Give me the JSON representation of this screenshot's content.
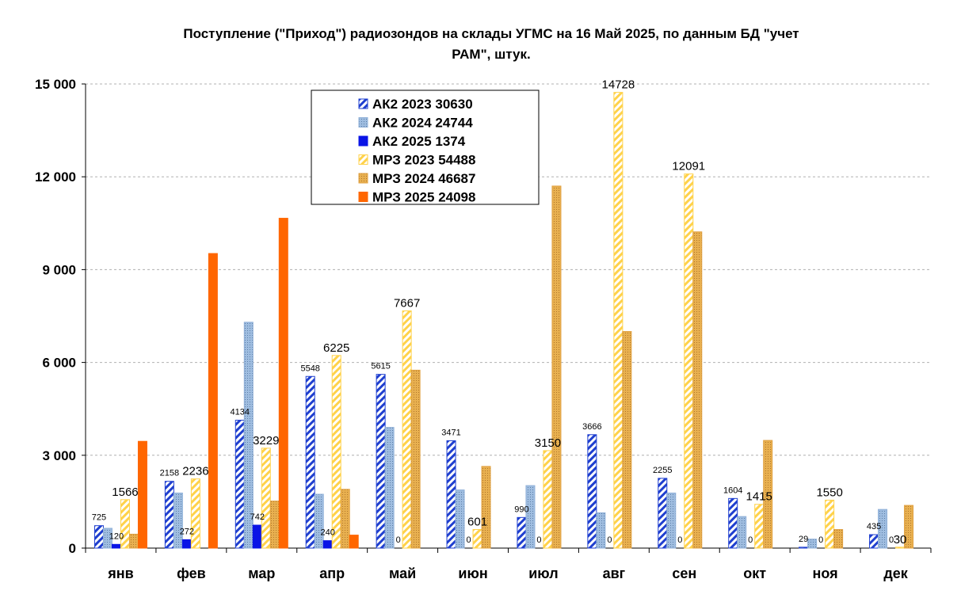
{
  "chart_data": {
    "type": "bar",
    "title_line1": "Поступление  (\"Приход\")  радиозондов на склады УГМС  на 16 Май 2025, по данным БД \"учет",
    "title_line2": "РАМ\", штук.",
    "categories": [
      "янв",
      "фев",
      "мар",
      "апр",
      "май",
      "июн",
      "июл",
      "авг",
      "сен",
      "окт",
      "ноя",
      "дек"
    ],
    "ylim": [
      0,
      15000
    ],
    "yticks": [
      0,
      3000,
      6000,
      9000,
      12000,
      15000
    ],
    "ytick_labels": [
      "0",
      "3 000",
      "6 000",
      "9 000",
      "12 000",
      "15 000"
    ],
    "grid": true,
    "legend_position": "top-center",
    "series": [
      {
        "name": "АК2 2023 30630",
        "values": [
          725,
          2158,
          4134,
          5548,
          5615,
          3471,
          990,
          3666,
          2255,
          1604,
          29,
          435
        ],
        "labels": [
          "725",
          "2158",
          "4134",
          "5548",
          "5615",
          "3471",
          "990",
          "3666",
          "2255",
          "1604",
          "29",
          "435"
        ],
        "label_style": "small",
        "color": "#1f3fcf",
        "fill": "hatch"
      },
      {
        "name": "АК2 2024 24744",
        "values": [
          640,
          1780,
          7300,
          1740,
          3900,
          1880,
          2020,
          1140,
          1780,
          1020,
          290,
          1250
        ],
        "labels": [
          "",
          "",
          "",
          "",
          "",
          "",
          "",
          "",
          "",
          "",
          "",
          ""
        ],
        "label_style": "small",
        "color": "#8fb0d8",
        "fill": "dotted"
      },
      {
        "name": "АК2 2025 1374",
        "values": [
          120,
          272,
          742,
          240,
          0,
          0,
          0,
          0,
          0,
          0,
          0,
          0
        ],
        "labels": [
          "120",
          "272",
          "742",
          "240",
          "0",
          "0",
          "0",
          "0",
          "0",
          "0",
          "0",
          "0"
        ],
        "label_style": "small",
        "color": "#0a14e6",
        "fill": "solid"
      },
      {
        "name": "МРЗ 2023 54488",
        "values": [
          1566,
          2236,
          3229,
          6225,
          7667,
          601,
          3150,
          14728,
          12091,
          1415,
          1550,
          30
        ],
        "labels": [
          "1566",
          "2236",
          "3229",
          "6225",
          "7667",
          "601",
          "3150",
          "14728",
          "12091",
          "1415",
          "1550",
          "30"
        ],
        "label_style": "large",
        "color": "#ffd24a",
        "fill": "hatch"
      },
      {
        "name": "МРЗ 2024 46687",
        "values": [
          450,
          0,
          1520,
          1900,
          5750,
          2640,
          11700,
          7000,
          10220,
          3480,
          600,
          1380
        ],
        "labels": [
          "",
          "",
          "",
          "",
          "",
          "",
          "",
          "",
          "",
          "",
          "",
          ""
        ],
        "label_style": "small",
        "color": "#e0a040",
        "fill": "dotted"
      },
      {
        "name": "МРЗ 2025 24098",
        "values": [
          3450,
          9520,
          10660,
          420,
          0,
          0,
          0,
          0,
          0,
          0,
          0,
          0
        ],
        "labels": [
          "",
          "",
          "",
          "",
          "",
          "",
          "",
          "",
          "",
          "",
          "",
          ""
        ],
        "label_style": "small",
        "color": "#ff6600",
        "fill": "solid"
      }
    ]
  }
}
